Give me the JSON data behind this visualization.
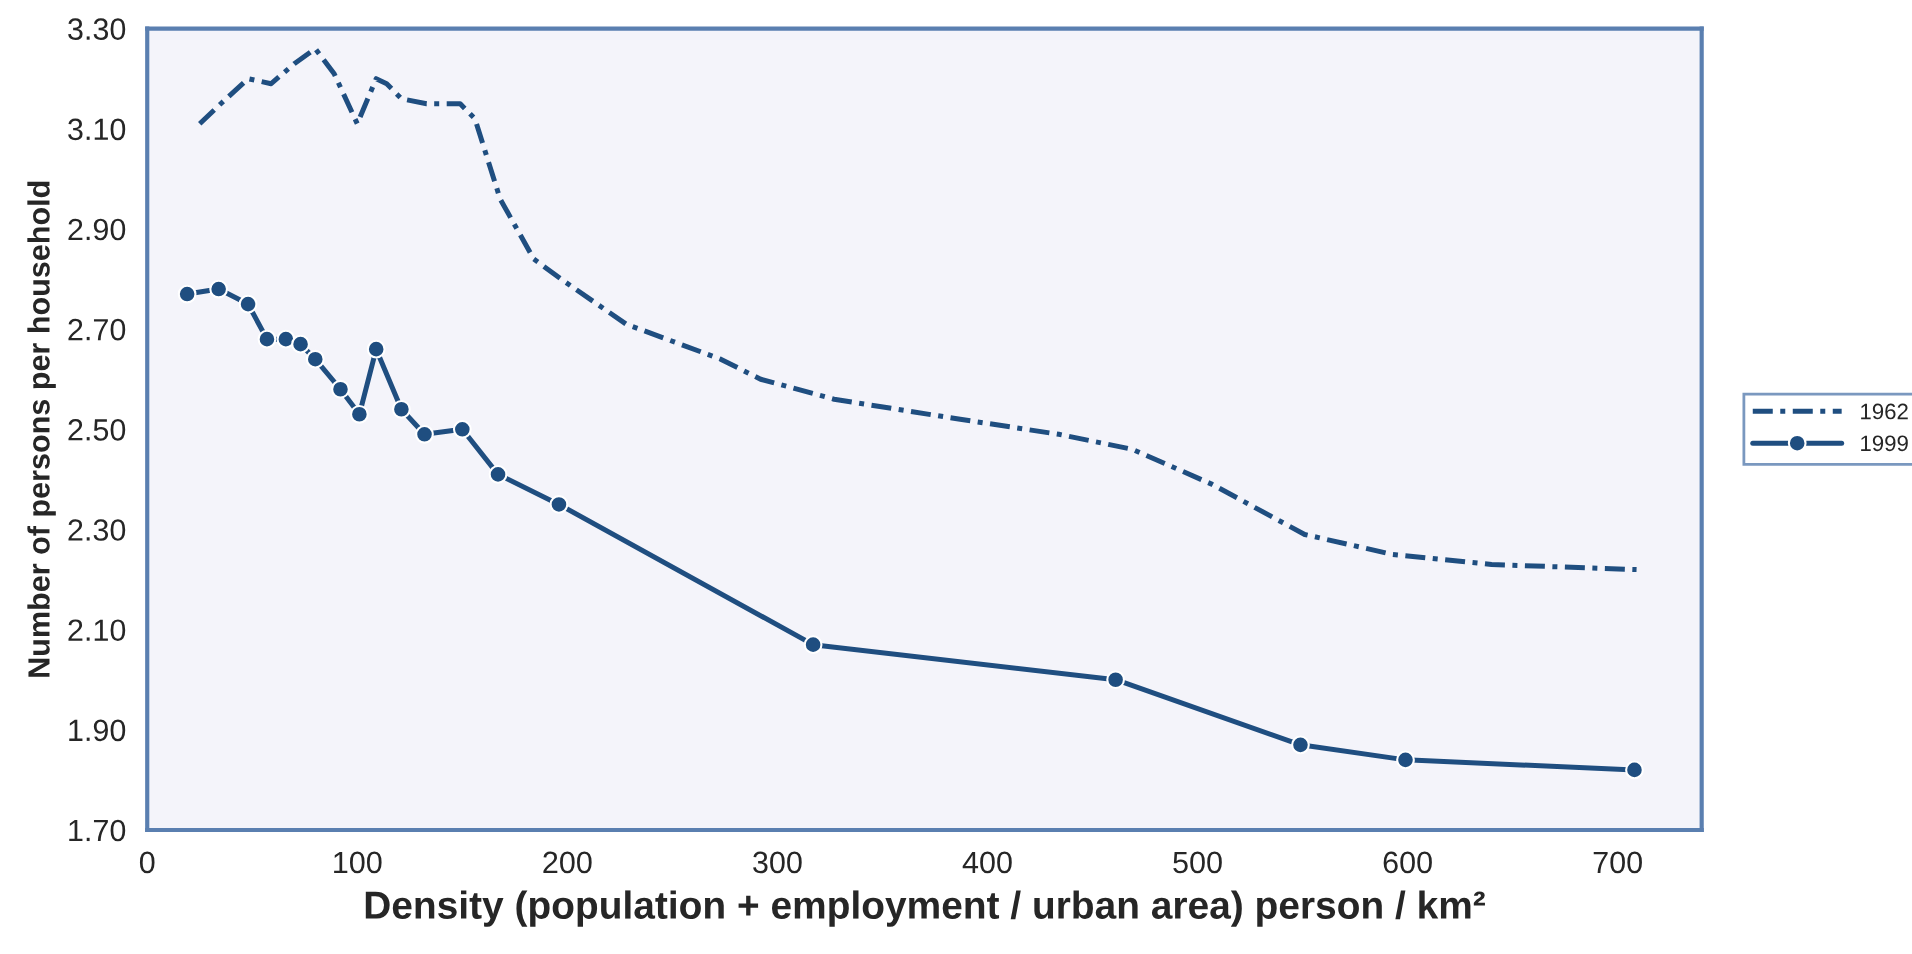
{
  "chart_data": {
    "type": "line",
    "xlabel": "Density (population + employment / urban area) person / km²",
    "ylabel": "Number of persons per household",
    "xlim": [
      0,
      740
    ],
    "ylim": [
      1.7,
      3.3
    ],
    "xticks": [
      0,
      100,
      200,
      300,
      400,
      500,
      600,
      700
    ],
    "yticks": [
      {
        "value": 1.7,
        "label": "1.70"
      },
      {
        "value": 1.9,
        "label": "1.90"
      },
      {
        "value": 2.1,
        "label": "2.10"
      },
      {
        "value": 2.3,
        "label": "2.30"
      },
      {
        "value": 2.5,
        "label": "2.50"
      },
      {
        "value": 2.7,
        "label": "2.70"
      },
      {
        "value": 2.9,
        "label": "2.90"
      },
      {
        "value": 3.1,
        "label": "3.10"
      },
      {
        "value": 3.3,
        "label": "3.30"
      }
    ],
    "grid": false,
    "legend": "right",
    "series": [
      {
        "name": "1962",
        "color": "#1f4e80",
        "line_style": "dashdot",
        "marker": "none",
        "x": [
          25,
          35,
          48,
          59,
          70,
          80,
          89,
          100,
          109,
          114,
          121,
          133,
          149,
          156,
          168,
          184,
          197,
          228,
          273,
          292,
          327,
          387,
          434,
          469,
          507,
          551,
          593,
          640,
          709
        ],
        "values": [
          3.11,
          3.15,
          3.2,
          3.19,
          3.23,
          3.26,
          3.21,
          3.11,
          3.2,
          3.19,
          3.16,
          3.15,
          3.15,
          3.12,
          2.96,
          2.84,
          2.8,
          2.71,
          2.64,
          2.6,
          2.56,
          2.52,
          2.49,
          2.46,
          2.39,
          2.29,
          2.25,
          2.23,
          2.22
        ]
      },
      {
        "name": "1999",
        "color": "#1f4e80",
        "line_style": "solid",
        "marker": "circle",
        "x": [
          19,
          34,
          48,
          57,
          66,
          73,
          80,
          92,
          101,
          109,
          121,
          132,
          150,
          167,
          196,
          317,
          461,
          549,
          599,
          708
        ],
        "values": [
          2.77,
          2.78,
          2.75,
          2.68,
          2.68,
          2.67,
          2.64,
          2.58,
          2.53,
          2.66,
          2.54,
          2.49,
          2.5,
          2.41,
          2.35,
          2.07,
          2.0,
          1.87,
          1.84,
          1.82
        ]
      }
    ]
  }
}
